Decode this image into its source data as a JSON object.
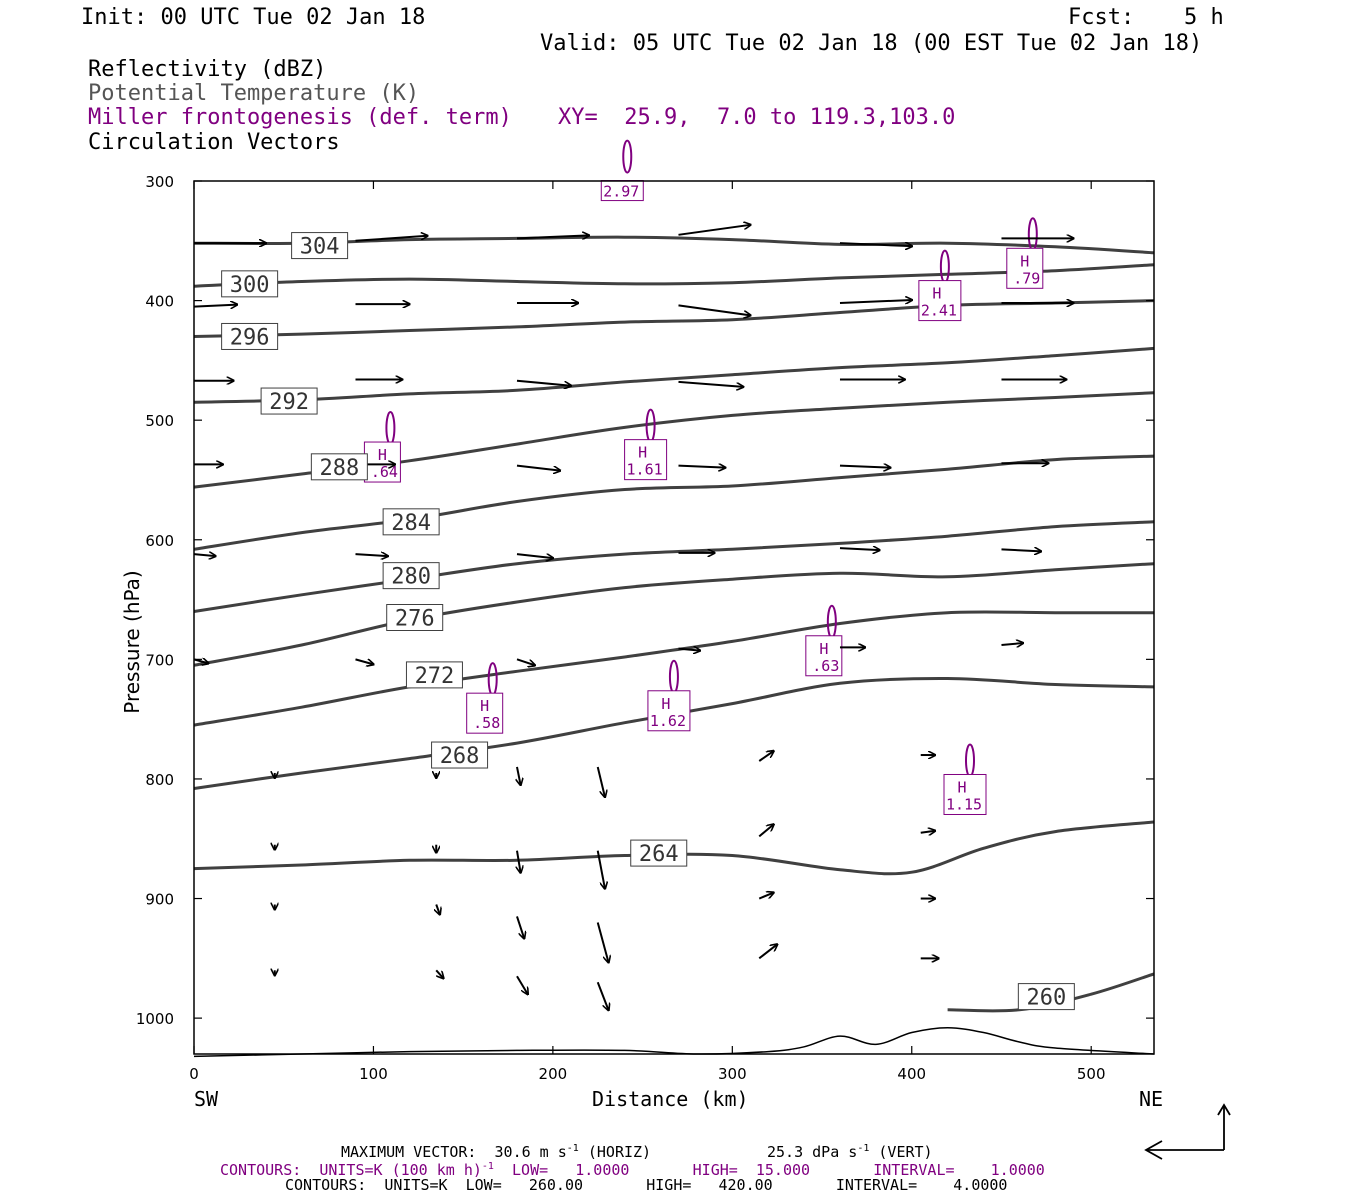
{
  "header": {
    "init": "Init: 00 UTC Tue 02 Jan 18",
    "fcst_label": "Fcst:",
    "fcst_value": "5 h",
    "valid": "Valid: 05 UTC Tue 02 Jan 18 (00 EST Tue 02 Jan 18)"
  },
  "fields": {
    "reflectivity": "Reflectivity (dBZ)",
    "theta": "Potential Temperature (K)",
    "frontogenesis": "Miller frontogenesis (def. term)",
    "xy": "XY=  25.9,  7.0 to 119.3,103.0",
    "vectors": "Circulation Vectors"
  },
  "footer": {
    "max_vector": "MAXIMUM VECTOR:  30.6 m s",
    "max_vector_exp": "-1",
    "horiz": " (HORIZ)",
    "vert_val": "25.3 dPa s",
    "vert_exp": "-1",
    "vert_tail": " (VERT)",
    "contours1_a": "CONTOURS:  UNITS=K (100 km h)",
    "contours1_exp": "-1",
    "contours1_b": "  LOW=   1.0000       HIGH=  15.000       INTERVAL=    1.0000",
    "contours2": "CONTOURS:  UNITS=K  LOW=   260.00       HIGH=   420.00       INTERVAL=    4.0000"
  },
  "colors": {
    "theta": "#404040",
    "fronto": "#800080",
    "vector": "#000000"
  },
  "chart_data": {
    "type": "cross-section",
    "xlabel": "Distance (km)",
    "ylabel": "Pressure (hPa)",
    "x_ticks": [
      0,
      100,
      200,
      300,
      400,
      500
    ],
    "y_ticks": [
      300,
      400,
      500,
      600,
      700,
      800,
      900,
      1000
    ],
    "xlim": [
      0,
      535
    ],
    "ylim": [
      1030,
      300
    ],
    "left_end": "SW",
    "right_end": "NE",
    "theta_contours": [
      {
        "label": "304",
        "lx": 70,
        "lp": 354,
        "pts": [
          [
            0,
            352
          ],
          [
            60,
            352
          ],
          [
            120,
            349
          ],
          [
            180,
            348
          ],
          [
            240,
            347
          ],
          [
            300,
            349
          ],
          [
            360,
            353
          ],
          [
            420,
            352
          ],
          [
            480,
            355
          ],
          [
            535,
            360
          ]
        ]
      },
      {
        "label": "300",
        "lx": 31,
        "lp": 386,
        "pts": [
          [
            0,
            388
          ],
          [
            60,
            384
          ],
          [
            120,
            382
          ],
          [
            180,
            384
          ],
          [
            240,
            386
          ],
          [
            300,
            385
          ],
          [
            360,
            381
          ],
          [
            420,
            378
          ],
          [
            480,
            375
          ],
          [
            535,
            370
          ]
        ]
      },
      {
        "label": "296",
        "lx": 31,
        "lp": 430,
        "pts": [
          [
            0,
            430
          ],
          [
            60,
            428
          ],
          [
            120,
            425
          ],
          [
            180,
            422
          ],
          [
            240,
            418
          ],
          [
            300,
            416
          ],
          [
            360,
            410
          ],
          [
            420,
            404
          ],
          [
            480,
            402
          ],
          [
            535,
            400
          ]
        ]
      },
      {
        "label": "292",
        "lx": 53,
        "lp": 484,
        "pts": [
          [
            0,
            485
          ],
          [
            60,
            483
          ],
          [
            120,
            478
          ],
          [
            180,
            475
          ],
          [
            240,
            468
          ],
          [
            300,
            462
          ],
          [
            360,
            456
          ],
          [
            420,
            452
          ],
          [
            480,
            446
          ],
          [
            535,
            440
          ]
        ]
      },
      {
        "label": "288",
        "lx": 81,
        "lp": 539,
        "pts": [
          [
            0,
            556
          ],
          [
            60,
            545
          ],
          [
            120,
            534
          ],
          [
            180,
            520
          ],
          [
            240,
            506
          ],
          [
            300,
            496
          ],
          [
            360,
            490
          ],
          [
            420,
            485
          ],
          [
            480,
            481
          ],
          [
            535,
            477
          ]
        ]
      },
      {
        "label": "284",
        "lx": 121,
        "lp": 585,
        "pts": [
          [
            0,
            608
          ],
          [
            60,
            594
          ],
          [
            120,
            583
          ],
          [
            180,
            568
          ],
          [
            240,
            558
          ],
          [
            300,
            555
          ],
          [
            360,
            548
          ],
          [
            420,
            541
          ],
          [
            480,
            533
          ],
          [
            535,
            530
          ]
        ]
      },
      {
        "label": "280",
        "lx": 121,
        "lp": 630,
        "pts": [
          [
            0,
            660
          ],
          [
            60,
            646
          ],
          [
            120,
            633
          ],
          [
            180,
            620
          ],
          [
            240,
            612
          ],
          [
            300,
            608
          ],
          [
            360,
            603
          ],
          [
            420,
            597
          ],
          [
            480,
            589
          ],
          [
            535,
            585
          ]
        ]
      },
      {
        "label": "276",
        "lx": 123,
        "lp": 665,
        "pts": [
          [
            0,
            705
          ],
          [
            60,
            688
          ],
          [
            120,
            667
          ],
          [
            180,
            652
          ],
          [
            240,
            640
          ],
          [
            300,
            633
          ],
          [
            360,
            628
          ],
          [
            420,
            631
          ],
          [
            480,
            625
          ],
          [
            535,
            620
          ]
        ]
      },
      {
        "label": "272",
        "lx": 134,
        "lp": 713,
        "pts": [
          [
            0,
            755
          ],
          [
            60,
            740
          ],
          [
            120,
            723
          ],
          [
            180,
            710
          ],
          [
            240,
            698
          ],
          [
            300,
            685
          ],
          [
            360,
            670
          ],
          [
            420,
            661
          ],
          [
            480,
            661
          ],
          [
            535,
            661
          ]
        ]
      },
      {
        "label": "268",
        "lx": 148,
        "lp": 780,
        "pts": [
          [
            0,
            808
          ],
          [
            60,
            795
          ],
          [
            120,
            783
          ],
          [
            180,
            770
          ],
          [
            240,
            753
          ],
          [
            300,
            737
          ],
          [
            360,
            720
          ],
          [
            420,
            716
          ],
          [
            480,
            721
          ],
          [
            535,
            723
          ]
        ]
      },
      {
        "label": "264",
        "lx": 259,
        "lp": 862,
        "pts": [
          [
            0,
            875
          ],
          [
            60,
            872
          ],
          [
            120,
            868
          ],
          [
            180,
            868
          ],
          [
            240,
            864
          ],
          [
            300,
            864
          ],
          [
            360,
            876
          ],
          [
            400,
            878
          ],
          [
            440,
            858
          ],
          [
            480,
            844
          ],
          [
            535,
            836
          ]
        ]
      },
      {
        "label": "260",
        "lx": 475,
        "lp": 982,
        "pts": [
          [
            420,
            993
          ],
          [
            460,
            993
          ],
          [
            500,
            980
          ],
          [
            535,
            963
          ]
        ]
      }
    ],
    "frontogenesis_maxima": [
      {
        "label": "H",
        "value": ".79",
        "x": 463,
        "p": 373
      },
      {
        "label": "H",
        "value": "2.41",
        "x": 414,
        "p": 400
      },
      {
        "label": "H",
        "value": ".64",
        "x": 105,
        "p": 535
      },
      {
        "label": "H",
        "value": "1.61",
        "x": 250,
        "p": 533
      },
      {
        "label": "H",
        "value": ".63",
        "x": 351,
        "p": 697
      },
      {
        "label": "H",
        "value": ".58",
        "x": 162,
        "p": 745
      },
      {
        "label": "H",
        "value": "1.62",
        "x": 263,
        "p": 743
      },
      {
        "label": "H",
        "value": "1.15",
        "x": 428,
        "p": 813
      },
      {
        "label": "",
        "value": "2.97",
        "x": 237,
        "p": 308
      }
    ],
    "circulation_vectors": [
      {
        "x": 0,
        "p": 352,
        "u": 40,
        "w": 0
      },
      {
        "x": 90,
        "p": 350,
        "u": 40,
        "w": -5
      },
      {
        "x": 180,
        "p": 348,
        "u": 40,
        "w": -3
      },
      {
        "x": 270,
        "p": 345,
        "u": 40,
        "w": -10
      },
      {
        "x": 360,
        "p": 352,
        "u": 40,
        "w": 3
      },
      {
        "x": 450,
        "p": 348,
        "u": 40,
        "w": 0
      },
      {
        "x": 0,
        "p": 405,
        "u": 24,
        "w": -2
      },
      {
        "x": 90,
        "p": 403,
        "u": 30,
        "w": 0
      },
      {
        "x": 180,
        "p": 402,
        "u": 34,
        "w": 0
      },
      {
        "x": 270,
        "p": 404,
        "u": 40,
        "w": 10
      },
      {
        "x": 360,
        "p": 402,
        "u": 40,
        "w": -3
      },
      {
        "x": 450,
        "p": 402,
        "u": 40,
        "w": 0
      },
      {
        "x": 0,
        "p": 467,
        "u": 22,
        "w": 0
      },
      {
        "x": 90,
        "p": 466,
        "u": 26,
        "w": 0
      },
      {
        "x": 180,
        "p": 467,
        "u": 30,
        "w": 5
      },
      {
        "x": 270,
        "p": 468,
        "u": 36,
        "w": 5
      },
      {
        "x": 360,
        "p": 466,
        "u": 36,
        "w": 0
      },
      {
        "x": 450,
        "p": 466,
        "u": 36,
        "w": 0
      },
      {
        "x": 0,
        "p": 537,
        "u": 16,
        "w": 0
      },
      {
        "x": 90,
        "p": 537,
        "u": 22,
        "w": 0
      },
      {
        "x": 180,
        "p": 538,
        "u": 24,
        "w": 5
      },
      {
        "x": 270,
        "p": 538,
        "u": 26,
        "w": 2
      },
      {
        "x": 360,
        "p": 538,
        "u": 28,
        "w": 2
      },
      {
        "x": 450,
        "p": 536,
        "u": 26,
        "w": 0
      },
      {
        "x": 0,
        "p": 612,
        "u": 12,
        "w": 2
      },
      {
        "x": 90,
        "p": 612,
        "u": 18,
        "w": 2
      },
      {
        "x": 180,
        "p": 612,
        "u": 20,
        "w": 4
      },
      {
        "x": 270,
        "p": 611,
        "u": 20,
        "w": 0
      },
      {
        "x": 360,
        "p": 607,
        "u": 22,
        "w": 2
      },
      {
        "x": 450,
        "p": 608,
        "u": 22,
        "w": 2
      },
      {
        "x": 0,
        "p": 700,
        "u": 8,
        "w": 4
      },
      {
        "x": 90,
        "p": 700,
        "u": 10,
        "w": 5
      },
      {
        "x": 180,
        "p": 700,
        "u": 10,
        "w": 6
      },
      {
        "x": 270,
        "p": 691,
        "u": 12,
        "w": 2
      },
      {
        "x": 360,
        "p": 690,
        "u": 14,
        "w": 0
      },
      {
        "x": 450,
        "p": 688,
        "u": 12,
        "w": -2
      },
      {
        "x": 45,
        "p": 795,
        "u": 0,
        "w": 5
      },
      {
        "x": 135,
        "p": 795,
        "u": 0,
        "w": 5
      },
      {
        "x": 180,
        "p": 790,
        "u": 2,
        "w": 18
      },
      {
        "x": 225,
        "p": 790,
        "u": 4,
        "w": 30
      },
      {
        "x": 315,
        "p": 785,
        "u": 8,
        "w": -10
      },
      {
        "x": 405,
        "p": 780,
        "u": 8,
        "w": 0
      },
      {
        "x": 45,
        "p": 855,
        "u": 0,
        "w": 5
      },
      {
        "x": 135,
        "p": 855,
        "u": 0,
        "w": 8
      },
      {
        "x": 180,
        "p": 860,
        "u": 2,
        "w": 22
      },
      {
        "x": 225,
        "p": 860,
        "u": 4,
        "w": 38
      },
      {
        "x": 315,
        "p": 848,
        "u": 8,
        "w": -12
      },
      {
        "x": 405,
        "p": 845,
        "u": 8,
        "w": -2
      },
      {
        "x": 45,
        "p": 905,
        "u": 0,
        "w": 5
      },
      {
        "x": 135,
        "p": 905,
        "u": 2,
        "w": 10
      },
      {
        "x": 180,
        "p": 915,
        "u": 4,
        "w": 22
      },
      {
        "x": 225,
        "p": 920,
        "u": 6,
        "w": 40
      },
      {
        "x": 315,
        "p": 900,
        "u": 8,
        "w": -6
      },
      {
        "x": 405,
        "p": 900,
        "u": 8,
        "w": 0
      },
      {
        "x": 45,
        "p": 960,
        "u": 0,
        "w": 5
      },
      {
        "x": 135,
        "p": 960,
        "u": 4,
        "w": 8
      },
      {
        "x": 180,
        "p": 965,
        "u": 6,
        "w": 18
      },
      {
        "x": 225,
        "p": 970,
        "u": 6,
        "w": 28
      },
      {
        "x": 315,
        "p": 950,
        "u": 10,
        "w": -14
      },
      {
        "x": 405,
        "p": 950,
        "u": 10,
        "w": 0
      }
    ],
    "terrain": [
      [
        0,
        1032
      ],
      [
        60,
        1030
      ],
      [
        120,
        1028
      ],
      [
        180,
        1027
      ],
      [
        240,
        1027
      ],
      [
        280,
        1030
      ],
      [
        320,
        1028
      ],
      [
        340,
        1024
      ],
      [
        360,
        1015
      ],
      [
        380,
        1022
      ],
      [
        400,
        1012
      ],
      [
        420,
        1008
      ],
      [
        440,
        1012
      ],
      [
        460,
        1020
      ],
      [
        480,
        1025
      ],
      [
        535,
        1030
      ]
    ]
  }
}
